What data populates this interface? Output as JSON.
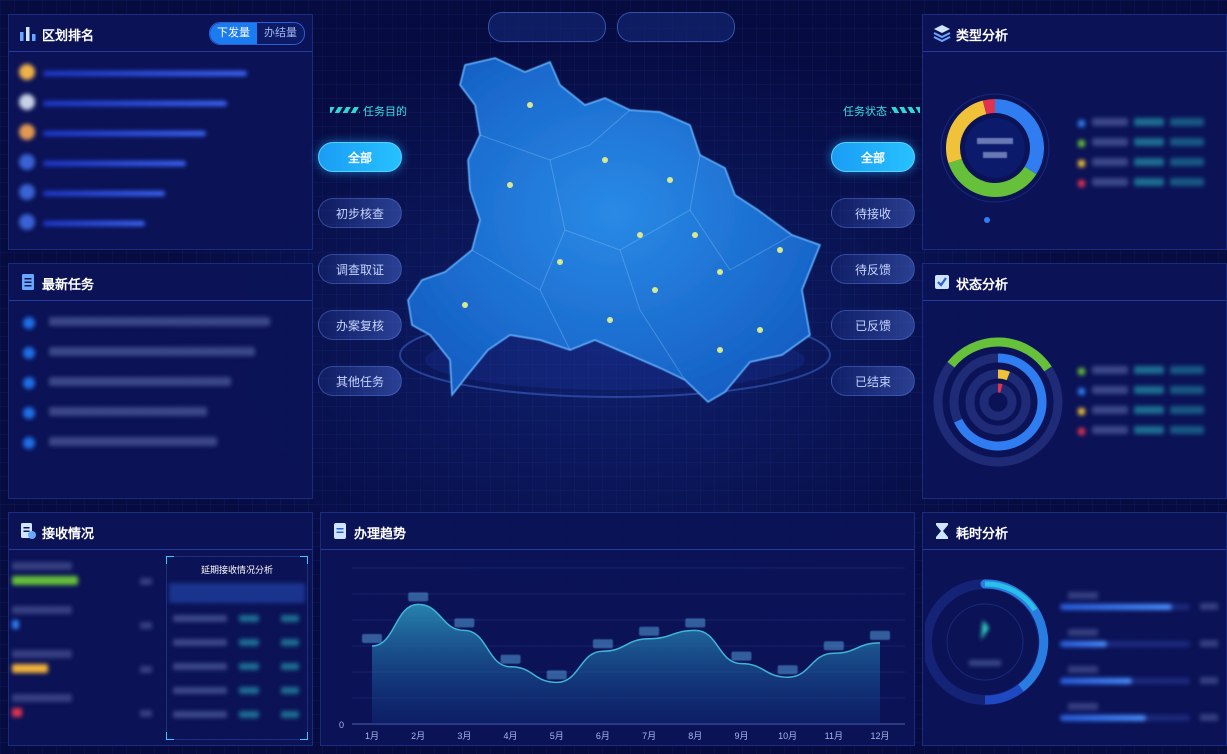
{
  "top_tabs": [
    "",
    ""
  ],
  "ranking": {
    "title": "区划排名",
    "toggle": [
      "下发量",
      "办结量"
    ],
    "rows": [
      {
        "pct": 0.8,
        "color": "#f0b34a"
      },
      {
        "pct": 0.72,
        "color": "#c8d2e6"
      },
      {
        "pct": 0.64,
        "color": "#e29a52"
      },
      {
        "pct": 0.56,
        "color": "#3a63d6"
      },
      {
        "pct": 0.48,
        "color": "#3a63d6"
      },
      {
        "pct": 0.4,
        "color": "#3a63d6"
      }
    ]
  },
  "latest_tasks": {
    "title": "最新任务",
    "rows": [
      0.92,
      0.86,
      0.76,
      0.66,
      0.7
    ]
  },
  "receive": {
    "title": "接收情况",
    "rows": [
      {
        "pct": 0.55,
        "color": "#67c03a"
      },
      {
        "pct": 0.06,
        "color": "#2f7df0"
      },
      {
        "pct": 0.3,
        "color": "#f0b23a"
      },
      {
        "pct": 0.08,
        "color": "#e0334f"
      }
    ],
    "table_title": "延期接收情况分析"
  },
  "trend": {
    "title": "办理趋势",
    "y_zero": "0"
  },
  "center": {
    "left_label": "任务目的",
    "right_label": "任务状态",
    "left_buttons": [
      "全部",
      "初步核查",
      "调查取证",
      "办案复核",
      "其他任务"
    ],
    "right_buttons": [
      "全部",
      "待接收",
      "待反馈",
      "已反馈",
      "已结束"
    ]
  },
  "type_analysis": {
    "title": "类型分析",
    "legend_colors": [
      "#2f7df0",
      "#67c03a",
      "#f0c23a",
      "#e0334f"
    ]
  },
  "status_analysis": {
    "title": "状态分析",
    "legend_colors": [
      "#67c03a",
      "#2f7df0",
      "#f0c23a",
      "#e0334f"
    ]
  },
  "time_analysis": {
    "title": "耗时分析",
    "bars": [
      0.86,
      0.36,
      0.55,
      0.66
    ]
  },
  "chart_data": [
    {
      "type": "pie",
      "title": "类型分析",
      "values": [
        34,
        36,
        26,
        4
      ],
      "colors": [
        "#2f7df0",
        "#67c03a",
        "#f0c23a",
        "#e0334f"
      ]
    },
    {
      "type": "pie",
      "title": "状态分析",
      "values": [
        30,
        68,
        6,
        4
      ],
      "colors": [
        "#67c03a",
        "#2f7df0",
        "#f0c23a",
        "#e0334f"
      ]
    },
    {
      "type": "area",
      "title": "办理趋势",
      "categories": [
        "1月",
        "2月",
        "3月",
        "4月",
        "5月",
        "6月",
        "7月",
        "8月",
        "9月",
        "10月",
        "11月",
        "12月"
      ],
      "values": [
        75,
        115,
        90,
        55,
        40,
        70,
        82,
        90,
        58,
        45,
        68,
        78
      ],
      "ylim": [
        0,
        150
      ]
    }
  ]
}
